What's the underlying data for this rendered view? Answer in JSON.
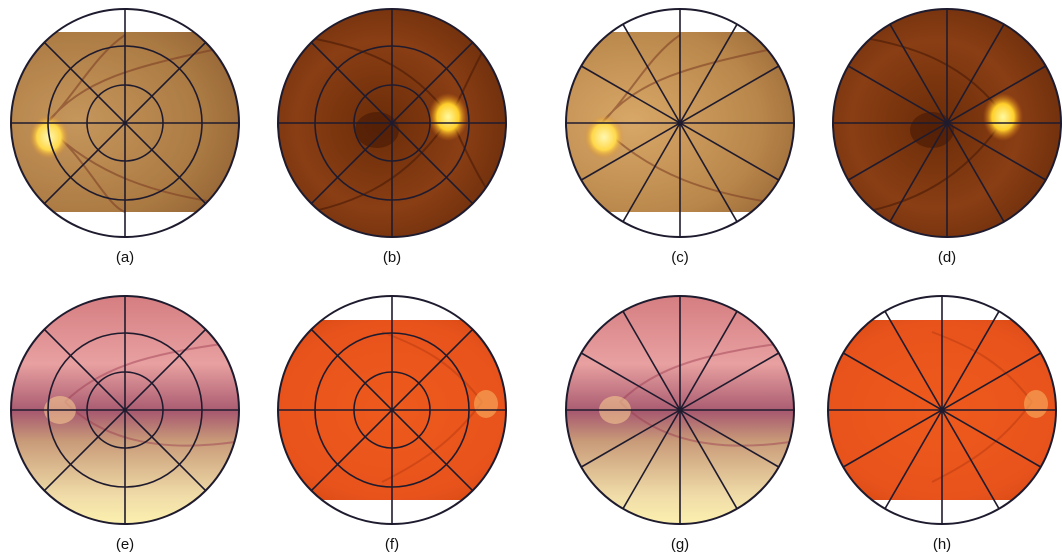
{
  "figure": {
    "panels": [
      {
        "label": "(a)",
        "style": "fundus-amber",
        "disc_side": "left",
        "crop": "partial",
        "grid": "rings-8-sectors"
      },
      {
        "label": "(b)",
        "style": "fundus-dark",
        "disc_side": "right",
        "crop": "full",
        "grid": "rings-8-sectors"
      },
      {
        "label": "(c)",
        "style": "fundus-amber",
        "disc_side": "left",
        "crop": "partial",
        "grid": "12-sectors"
      },
      {
        "label": "(d)",
        "style": "fundus-dark",
        "disc_side": "right",
        "crop": "full",
        "grid": "12-sectors"
      },
      {
        "label": "(e)",
        "style": "fundus-pink",
        "disc_side": "left",
        "crop": "full",
        "grid": "rings-8-sectors"
      },
      {
        "label": "(f)",
        "style": "fundus-orange",
        "disc_side": "right",
        "crop": "partial",
        "grid": "rings-8-sectors"
      },
      {
        "label": "(g)",
        "style": "fundus-pink",
        "disc_side": "left",
        "crop": "full",
        "grid": "12-sectors"
      },
      {
        "label": "(h)",
        "style": "fundus-orange",
        "disc_side": "right",
        "crop": "partial",
        "grid": "12-sectors"
      }
    ],
    "colors": {
      "outline": "#1f1b2e",
      "amber": "#b8864a",
      "dark": "#7a3410",
      "pink": "#d98a82",
      "orange": "#e8531c",
      "disc": "#ffe15a"
    }
  }
}
